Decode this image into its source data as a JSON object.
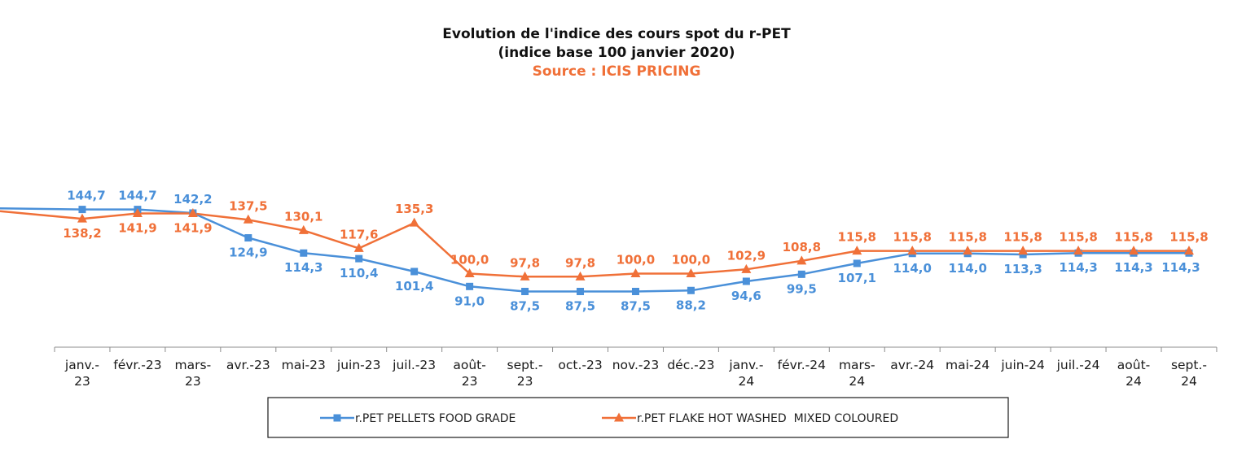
{
  "chart_data": {
    "type": "line",
    "title_lines": [
      "Evolution de l'indice des cours spot du r-PET",
      "(indice base 100 janvier 2020)"
    ],
    "source": "Source : ICIS PRICING",
    "categories": [
      [
        "janv.-",
        "23"
      ],
      [
        "févr.-23"
      ],
      [
        "mars-",
        "23"
      ],
      [
        "avr.-23"
      ],
      [
        "mai-23"
      ],
      [
        "juin-23"
      ],
      [
        "juil.-23"
      ],
      [
        "août-",
        "23"
      ],
      [
        "sept.-",
        "23"
      ],
      [
        "oct.-23"
      ],
      [
        "nov.-23"
      ],
      [
        "déc.-23"
      ],
      [
        "janv.-",
        "24"
      ],
      [
        "févr.-24"
      ],
      [
        "mars-",
        "24"
      ],
      [
        "avr.-24"
      ],
      [
        "mai-24"
      ],
      [
        "juin-24"
      ],
      [
        "juil.-24"
      ],
      [
        "août-",
        "24"
      ],
      [
        "sept.-",
        "24"
      ]
    ],
    "ylim": [
      60,
      160
    ],
    "grid": false,
    "legend_position": "bottom",
    "series": [
      {
        "name": "r.PET PELLETS FOOD GRADE",
        "color": "#4a90d9",
        "marker": "square",
        "start_value": 145.5,
        "values": [
          144.7,
          144.7,
          142.2,
          124.9,
          114.3,
          110.4,
          101.4,
          91.0,
          87.5,
          87.5,
          87.5,
          88.2,
          94.6,
          99.5,
          107.1,
          114.0,
          114.0,
          113.3,
          114.3,
          114.3,
          114.3
        ],
        "labels": [
          "144,7",
          "144,7",
          "142,2",
          "124,9",
          "114,3",
          "110,4",
          "101,4",
          "91,0",
          "87,5",
          "87,5",
          "87,5",
          "88,2",
          "94,6",
          "99,5",
          "107,1",
          "114,0",
          "114,0",
          "113,3",
          "114,3",
          "114,3",
          "114,3"
        ]
      },
      {
        "name": "r.PET FLAKE HOT WASHED  MIXED COLOURED",
        "color": "#f07038",
        "marker": "triangle",
        "start_value": 143.5,
        "values": [
          138.2,
          141.9,
          141.9,
          137.5,
          130.1,
          117.6,
          135.3,
          100.0,
          97.8,
          97.8,
          100.0,
          100.0,
          102.9,
          108.8,
          115.8,
          115.8,
          115.8,
          115.8,
          115.8,
          115.8,
          115.8
        ],
        "labels": [
          "138,2",
          "141,9",
          "141,9",
          "137,5",
          "130,1",
          "117,6",
          "135,3",
          "100,0",
          "97,8",
          "97,8",
          "100,0",
          "100,0",
          "102,9",
          "108,8",
          "115,8",
          "115,8",
          "115,8",
          "115,8",
          "115,8",
          "115,8",
          "115,8"
        ]
      }
    ]
  }
}
